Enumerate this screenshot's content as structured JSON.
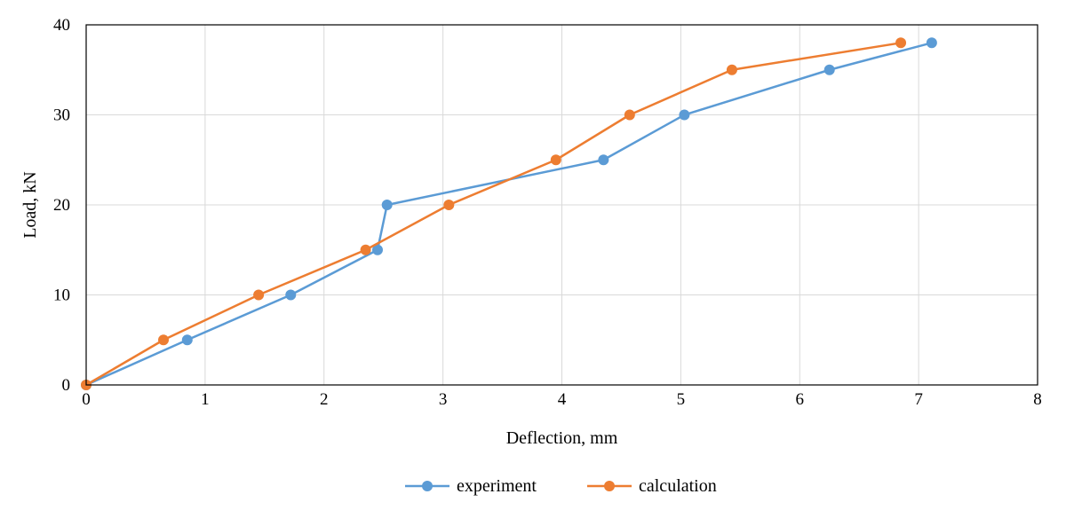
{
  "chart_data": {
    "type": "line",
    "title": "",
    "xlabel": "Deflection, mm",
    "ylabel": "Load, kN",
    "xlim": [
      0,
      8
    ],
    "ylim": [
      0,
      40
    ],
    "xticks": [
      0,
      1,
      2,
      3,
      4,
      5,
      6,
      7,
      8
    ],
    "yticks": [
      0,
      10,
      20,
      30,
      40
    ],
    "grid": true,
    "legend_position": "bottom",
    "series": [
      {
        "name": "experiment",
        "color": "#5b9bd5",
        "x": [
          0,
          0.85,
          1.72,
          2.45,
          2.53,
          4.35,
          5.03,
          6.25,
          7.11
        ],
        "y": [
          0,
          5,
          10,
          15,
          20,
          25,
          30,
          35,
          38
        ]
      },
      {
        "name": "calculation",
        "color": "#ed7d31",
        "x": [
          0,
          0.65,
          1.45,
          2.35,
          3.05,
          3.95,
          4.57,
          5.43,
          6.85
        ],
        "y": [
          0,
          5,
          10,
          15,
          20,
          25,
          30,
          35,
          38
        ]
      }
    ]
  }
}
